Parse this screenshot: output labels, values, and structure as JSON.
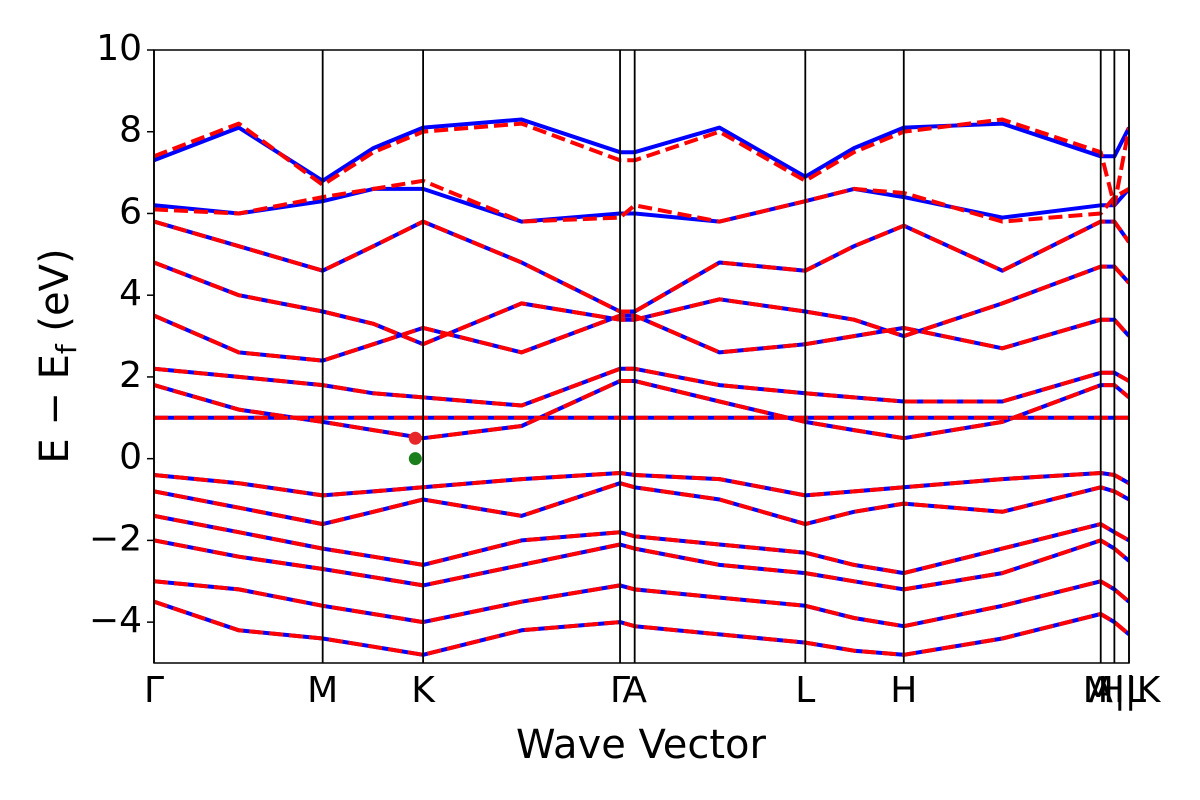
{
  "chart_data": {
    "type": "bands",
    "xlabel": "Wave Vector",
    "ylabel": {
      "main": "E − E",
      "sub": "f",
      "unit": " (eV)"
    },
    "xlim": [
      0,
      1
    ],
    "ylim": [
      -5,
      10
    ],
    "yticks": [
      {
        "value": -4,
        "label": "−4"
      },
      {
        "value": -2,
        "label": "−2"
      },
      0,
      2,
      4,
      6,
      8,
      10
    ],
    "xticks": [
      {
        "value": 0,
        "label": "Γ"
      },
      {
        "value": 0.173,
        "label": "M"
      },
      {
        "value": 0.276,
        "label": "K"
      },
      {
        "value": 0.478,
        "label": "Γ"
      },
      {
        "value": 0.493,
        "label": "A"
      },
      {
        "value": 0.668,
        "label": "L"
      },
      {
        "value": 0.769,
        "label": "H"
      },
      {
        "value": 0.971,
        "label": "A"
      },
      {
        "value": 0.985,
        "label": "M|L"
      },
      {
        "value": 1,
        "label": "H|K"
      }
    ],
    "x": [
      0,
      0.087,
      0.173,
      0.225,
      0.276,
      0.377,
      0.478,
      0.493,
      0.58,
      0.668,
      0.718,
      0.769,
      0.87,
      0.971,
      0.985,
      1
    ],
    "series": [
      {
        "color": "#0000ff",
        "dashed": false,
        "bands": [
          [
            -0.4,
            -0.6,
            -0.9,
            -0.8,
            -0.7,
            -0.5,
            -0.35,
            -0.4,
            -0.5,
            -0.9,
            -0.8,
            -0.7,
            -0.5,
            -0.35,
            -0.4,
            -0.6
          ],
          [
            -0.8,
            -1.2,
            -1.6,
            -1.3,
            -1.0,
            -1.4,
            -0.6,
            -0.7,
            -1.0,
            -1.6,
            -1.3,
            -1.1,
            -1.3,
            -0.7,
            -0.8,
            -1.0
          ],
          [
            -1.4,
            -1.8,
            -2.2,
            -2.4,
            -2.6,
            -2.0,
            -1.8,
            -1.9,
            -2.1,
            -2.3,
            -2.6,
            -2.8,
            -2.2,
            -1.6,
            -1.8,
            -2.0
          ],
          [
            -2.0,
            -2.4,
            -2.7,
            -2.9,
            -3.1,
            -2.6,
            -2.1,
            -2.2,
            -2.6,
            -2.8,
            -3.0,
            -3.2,
            -2.8,
            -2.0,
            -2.2,
            -2.5
          ],
          [
            -3.0,
            -3.2,
            -3.6,
            -3.8,
            -4.0,
            -3.5,
            -3.1,
            -3.2,
            -3.4,
            -3.6,
            -3.9,
            -4.1,
            -3.6,
            -3.0,
            -3.2,
            -3.5
          ],
          [
            -3.5,
            -4.2,
            -4.4,
            -4.6,
            -4.8,
            -4.2,
            -4.0,
            -4.1,
            -4.3,
            -4.5,
            -4.7,
            -4.8,
            -4.4,
            -3.8,
            -4.0,
            -4.3
          ],
          [
            1.0,
            1.0,
            1.0,
            1.0,
            1.0,
            1.0,
            1.0,
            1.0,
            1.0,
            1.0,
            1.0,
            1.0,
            1.0,
            1.0,
            1.0,
            1.0
          ],
          [
            1.8,
            1.2,
            0.9,
            0.7,
            0.5,
            0.8,
            1.9,
            1.9,
            1.4,
            0.9,
            0.7,
            0.5,
            0.9,
            1.8,
            1.8,
            1.5
          ],
          [
            2.2,
            2.0,
            1.8,
            1.6,
            1.5,
            1.3,
            2.2,
            2.2,
            1.8,
            1.6,
            1.5,
            1.4,
            1.4,
            2.1,
            2.1,
            1.9
          ],
          [
            3.5,
            2.6,
            2.4,
            2.8,
            3.2,
            2.6,
            3.5,
            3.5,
            2.6,
            2.8,
            3.0,
            3.2,
            2.7,
            3.4,
            3.4,
            3.0
          ],
          [
            4.8,
            4.0,
            3.6,
            3.3,
            2.8,
            3.8,
            3.4,
            3.4,
            3.9,
            3.6,
            3.4,
            3.0,
            3.8,
            4.7,
            4.7,
            4.3
          ],
          [
            5.8,
            5.2,
            4.6,
            5.2,
            5.8,
            4.8,
            3.6,
            3.6,
            4.8,
            4.6,
            5.2,
            5.7,
            4.6,
            5.8,
            5.8,
            5.3
          ],
          [
            6.2,
            6.0,
            6.3,
            6.6,
            6.6,
            5.8,
            6.0,
            6.0,
            5.8,
            6.3,
            6.6,
            6.4,
            5.9,
            6.2,
            6.2,
            6.6
          ],
          [
            7.3,
            8.1,
            6.8,
            7.6,
            8.1,
            8.3,
            7.5,
            7.5,
            8.1,
            6.9,
            7.6,
            8.1,
            8.2,
            7.4,
            7.4,
            8.1
          ]
        ]
      },
      {
        "color": "#ff0000",
        "dashed": true,
        "bands": [
          [
            -0.4,
            -0.6,
            -0.9,
            -0.8,
            -0.7,
            -0.5,
            -0.35,
            -0.4,
            -0.5,
            -0.9,
            -0.8,
            -0.7,
            -0.5,
            -0.35,
            -0.4,
            -0.6
          ],
          [
            -0.8,
            -1.2,
            -1.6,
            -1.3,
            -1.0,
            -1.4,
            -0.6,
            -0.7,
            -1.0,
            -1.6,
            -1.3,
            -1.1,
            -1.3,
            -0.7,
            -0.8,
            -1.0
          ],
          [
            -1.4,
            -1.8,
            -2.2,
            -2.4,
            -2.6,
            -2.0,
            -1.8,
            -1.9,
            -2.1,
            -2.3,
            -2.6,
            -2.8,
            -2.2,
            -1.6,
            -1.8,
            -2.0
          ],
          [
            -2.0,
            -2.4,
            -2.7,
            -2.9,
            -3.1,
            -2.6,
            -2.1,
            -2.2,
            -2.6,
            -2.8,
            -3.0,
            -3.2,
            -2.8,
            -2.0,
            -2.2,
            -2.5
          ],
          [
            -3.0,
            -3.2,
            -3.6,
            -3.8,
            -4.0,
            -3.5,
            -3.1,
            -3.2,
            -3.4,
            -3.6,
            -3.9,
            -4.1,
            -3.6,
            -3.0,
            -3.2,
            -3.5
          ],
          [
            -3.5,
            -4.2,
            -4.4,
            -4.6,
            -4.8,
            -4.2,
            -4.0,
            -4.1,
            -4.3,
            -4.5,
            -4.7,
            -4.8,
            -4.4,
            -3.8,
            -4.0,
            -4.3
          ],
          [
            1.0,
            1.0,
            1.0,
            1.0,
            1.0,
            1.0,
            1.0,
            1.0,
            1.0,
            1.0,
            1.0,
            1.0,
            1.0,
            1.0,
            1.0,
            1.0
          ],
          [
            1.8,
            1.2,
            0.9,
            0.7,
            0.5,
            0.8,
            1.9,
            1.9,
            1.4,
            0.9,
            0.7,
            0.5,
            0.9,
            1.8,
            1.8,
            1.5
          ],
          [
            2.2,
            2.0,
            1.8,
            1.6,
            1.5,
            1.3,
            2.2,
            2.2,
            1.8,
            1.6,
            1.5,
            1.4,
            1.4,
            2.1,
            2.1,
            1.9
          ],
          [
            3.5,
            2.6,
            2.4,
            2.8,
            3.2,
            2.6,
            3.5,
            3.5,
            2.6,
            2.8,
            3.0,
            3.2,
            2.7,
            3.4,
            3.4,
            3.0
          ],
          [
            4.8,
            4.0,
            3.6,
            3.3,
            2.8,
            3.8,
            3.4,
            3.4,
            3.9,
            3.6,
            3.4,
            3.0,
            3.8,
            4.7,
            4.7,
            4.3
          ],
          [
            5.8,
            5.2,
            4.6,
            5.2,
            5.8,
            4.8,
            3.6,
            3.6,
            4.8,
            4.6,
            5.2,
            5.7,
            4.6,
            5.8,
            5.8,
            5.3
          ],
          [
            6.1,
            6.0,
            6.4,
            6.6,
            6.8,
            5.8,
            5.9,
            6.2,
            5.8,
            6.3,
            6.6,
            6.5,
            5.8,
            6.0,
            6.4,
            6.6
          ],
          [
            7.4,
            8.2,
            6.7,
            7.5,
            8.0,
            8.2,
            7.3,
            7.3,
            8.0,
            6.8,
            7.5,
            8.0,
            8.3,
            7.5,
            6.2,
            8.1
          ]
        ]
      }
    ],
    "points": [
      {
        "x": 0.268,
        "y": 0.5,
        "color": "#e8272a"
      },
      {
        "x": 0.268,
        "y": 0,
        "color": "#1a7f1a"
      }
    ]
  }
}
